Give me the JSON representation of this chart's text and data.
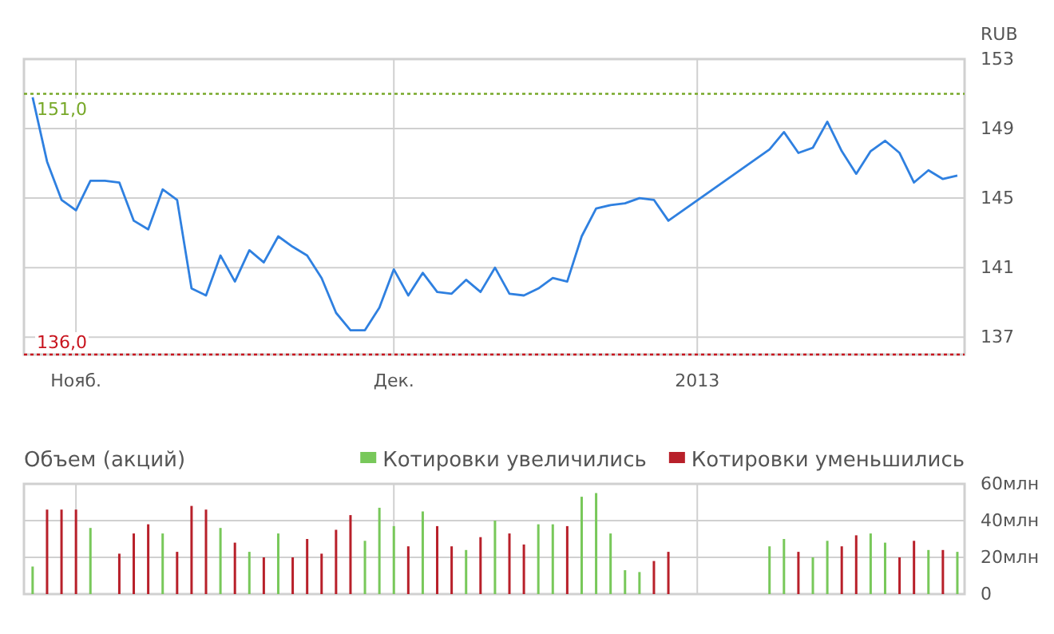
{
  "chart_data": [
    {
      "type": "line",
      "ylabel": "RUB",
      "categories": [
        null,
        null,
        null,
        "Нояб.",
        null,
        null,
        null,
        null,
        null,
        null,
        null,
        null,
        null,
        null,
        null,
        null,
        null,
        null,
        null,
        null,
        null,
        null,
        null,
        null,
        null,
        "Дек.",
        null,
        null,
        null,
        null,
        null,
        null,
        null,
        null,
        null,
        null,
        null,
        null,
        null,
        null,
        null,
        null,
        null,
        null,
        null,
        null,
        "2013",
        null,
        null,
        null,
        null,
        null,
        null,
        null,
        null,
        null,
        null,
        null,
        null,
        null,
        null,
        null,
        null,
        null,
        null
      ],
      "ylim": [
        136,
        153
      ],
      "yticks": [
        137,
        141,
        145,
        149,
        153
      ],
      "grid": true,
      "ref_lines": [
        {
          "axis": "y",
          "value": 151.0,
          "label": "151,0",
          "color": "#77a828",
          "line_style": "dotted"
        },
        {
          "axis": "y",
          "value": 136.0,
          "label": "136,0",
          "color": "#c8141e",
          "line_style": "dotted"
        }
      ],
      "series": [
        {
          "color": "#2f80e0",
          "values": [
            150.8,
            147.1,
            144.9,
            144.3,
            146.0,
            146.0,
            145.9,
            143.7,
            143.2,
            145.5,
            144.9,
            139.8,
            139.4,
            141.7,
            140.2,
            142.0,
            141.3,
            142.8,
            142.2,
            141.7,
            140.4,
            138.4,
            137.4,
            137.4,
            138.7,
            140.9,
            139.4,
            140.7,
            139.6,
            139.5,
            140.3,
            139.6,
            141.0,
            139.5,
            139.4,
            139.8,
            140.4,
            140.2,
            142.8,
            144.4,
            144.6,
            144.7,
            145.0,
            144.9,
            143.7,
            null,
            null,
            null,
            null,
            null,
            null,
            147.8,
            148.8,
            147.6,
            147.9,
            149.4,
            147.7,
            146.4,
            147.7,
            148.3,
            147.6,
            145.9,
            146.6,
            146.1,
            146.3
          ]
        }
      ]
    },
    {
      "type": "bar",
      "title": "Объем (акций)",
      "categories": [
        null,
        null,
        null,
        null,
        null,
        null,
        null,
        null,
        null,
        null,
        null,
        null,
        null,
        null,
        null,
        null,
        null,
        null,
        null,
        null,
        null,
        null,
        null,
        null,
        null,
        null,
        null,
        null,
        null,
        null,
        null,
        null,
        null,
        null,
        null,
        null,
        null,
        null,
        null,
        null,
        null,
        null,
        null,
        null,
        null,
        null,
        null,
        null,
        null,
        null,
        null,
        null,
        null,
        null,
        null,
        null,
        null,
        null,
        null,
        null,
        null,
        null,
        null,
        null,
        null
      ],
      "ylim": [
        0,
        60
      ],
      "yticks": [
        0,
        {
          "value": 20,
          "label": "20млн"
        },
        {
          "value": 40,
          "label": "40млн"
        },
        {
          "value": 60,
          "label": "60млн"
        }
      ],
      "grid": true,
      "tick_labels": "y",
      "legend": "top right",
      "series": [
        {
          "name": "Котировки увеличились",
          "color": "#78c85a",
          "values": [
            15,
            null,
            null,
            null,
            36,
            null,
            null,
            null,
            null,
            33,
            null,
            null,
            null,
            36,
            null,
            23,
            null,
            33,
            null,
            null,
            null,
            null,
            null,
            29,
            47,
            37,
            null,
            45,
            null,
            null,
            24,
            null,
            40,
            null,
            null,
            38,
            38,
            null,
            53,
            55,
            33,
            13,
            12,
            null,
            null,
            null,
            null,
            null,
            null,
            null,
            null,
            26,
            30,
            null,
            20,
            29,
            null,
            null,
            33,
            28,
            null,
            null,
            24,
            null,
            23
          ]
        },
        {
          "name": "Котировки уменьшились",
          "color": "#b8202a",
          "values": [
            null,
            46,
            46,
            46,
            null,
            null,
            22,
            33,
            38,
            null,
            23,
            48,
            46,
            null,
            28,
            null,
            20,
            null,
            20,
            30,
            22,
            35,
            43,
            null,
            null,
            null,
            26,
            null,
            37,
            26,
            null,
            31,
            null,
            33,
            27,
            null,
            null,
            37,
            null,
            null,
            null,
            null,
            null,
            18,
            23,
            null,
            null,
            null,
            null,
            null,
            null,
            null,
            null,
            23,
            null,
            null,
            26,
            32,
            null,
            null,
            20,
            29,
            null,
            24,
            null
          ]
        }
      ]
    }
  ]
}
